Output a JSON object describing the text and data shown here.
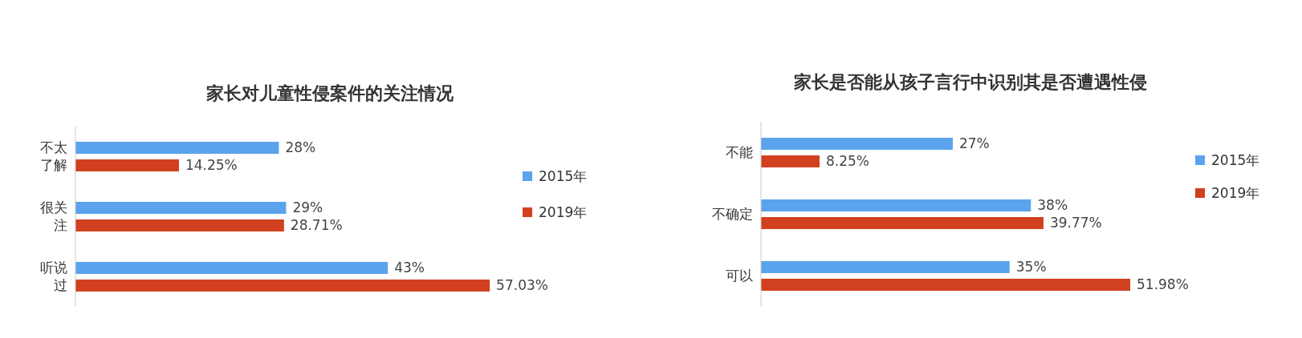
{
  "chart_data": [
    {
      "type": "bar",
      "orientation": "horizontal",
      "title": "家长对儿童性侵案件的关注情况",
      "categories": [
        "不太了解",
        "很关注",
        "听说过"
      ],
      "legend": "right",
      "series": [
        {
          "name": "2015年",
          "color": "#5ba3ec",
          "values": [
            28,
            29,
            43
          ],
          "value_labels": [
            "28%",
            "29%",
            "43%"
          ]
        },
        {
          "name": "2019年",
          "color": "#d1401f",
          "values": [
            14.25,
            28.71,
            57.03
          ],
          "value_labels": [
            "14.25%",
            "28.71%",
            "57.03%"
          ]
        }
      ]
    },
    {
      "type": "bar",
      "orientation": "horizontal",
      "title": "家长是否能从孩子言行中识别其是否遭遇性侵",
      "categories": [
        "不能",
        "不确定",
        "可以"
      ],
      "legend": "right",
      "series": [
        {
          "name": "2015年",
          "color": "#5ba3ec",
          "values": [
            27,
            38,
            35
          ],
          "value_labels": [
            "27%",
            "38%",
            "35%"
          ]
        },
        {
          "name": "2019年",
          "color": "#d1401f",
          "values": [
            8.25,
            39.77,
            51.98
          ],
          "value_labels": [
            "8.25%",
            "39.77%",
            "51.98%"
          ]
        }
      ]
    }
  ]
}
